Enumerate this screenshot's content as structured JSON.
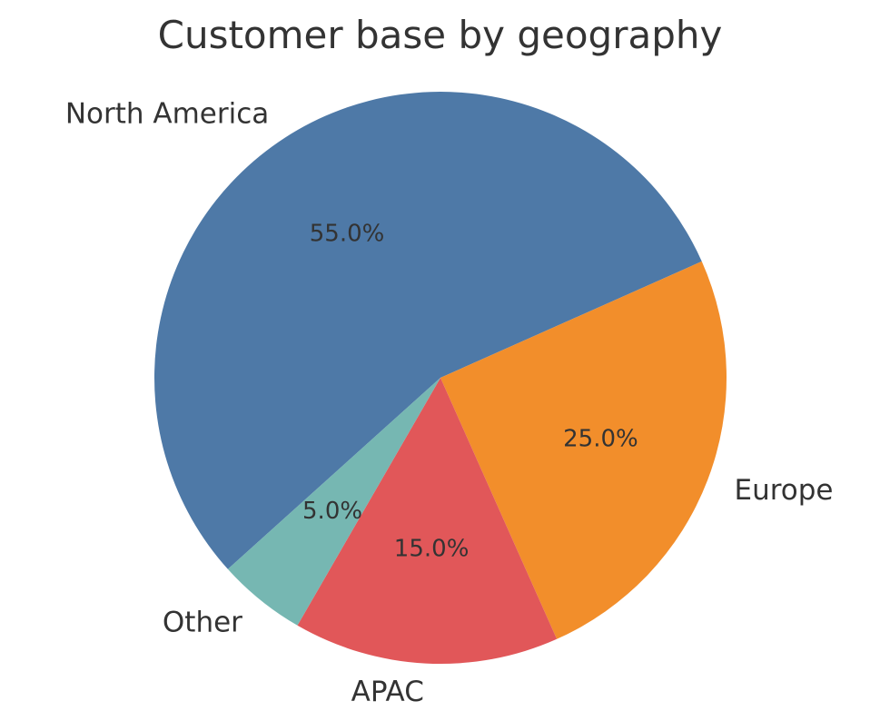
{
  "chart_data": {
    "type": "pie",
    "title": "Customer base by geography",
    "slices": [
      {
        "label": "North America",
        "value": 55.0,
        "pct_label": "55.0%",
        "color": "#4e79a7"
      },
      {
        "label": "Europe",
        "value": 25.0,
        "pct_label": "25.0%",
        "color": "#f28e2b"
      },
      {
        "label": "APAC",
        "value": 15.0,
        "pct_label": "15.0%",
        "color": "#e15759"
      },
      {
        "label": "Other",
        "value": 5.0,
        "pct_label": "5.0%",
        "color": "#76b7b2"
      }
    ]
  }
}
